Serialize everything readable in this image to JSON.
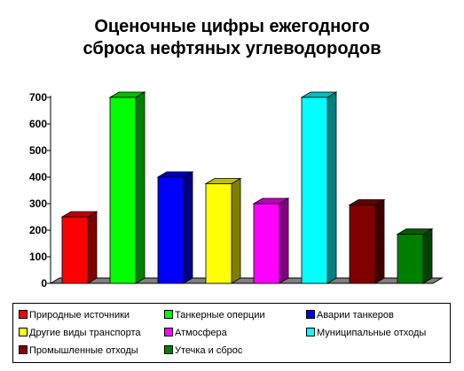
{
  "title_lines": [
    "Оценочные цифры ежегодного",
    "сброса нефтяных углеводородов"
  ],
  "chart_data": {
    "type": "bar",
    "title": "Оценочные цифры ежегодного сброса нефтяных углеводородов",
    "categories": [
      "Природные источники",
      "Танкерные оперции",
      "Аварии танкеров",
      "Другие виды транспорта",
      "Атмосфера",
      "Муниципальные отходы",
      "Промышленные отходы",
      "Утечка и сброс"
    ],
    "values": [
      250,
      700,
      400,
      375,
      300,
      700,
      295,
      185
    ],
    "colors": [
      "#ff0000",
      "#00ff00",
      "#0000ff",
      "#ffff00",
      "#ff00ff",
      "#00ffff",
      "#800000",
      "#008000"
    ],
    "ylim": [
      0,
      700
    ],
    "yticks": [
      "0",
      "100",
      "200",
      "300",
      "400",
      "500",
      "600",
      "700"
    ],
    "style": "3d",
    "grid": false,
    "legend_position": "bottom"
  }
}
